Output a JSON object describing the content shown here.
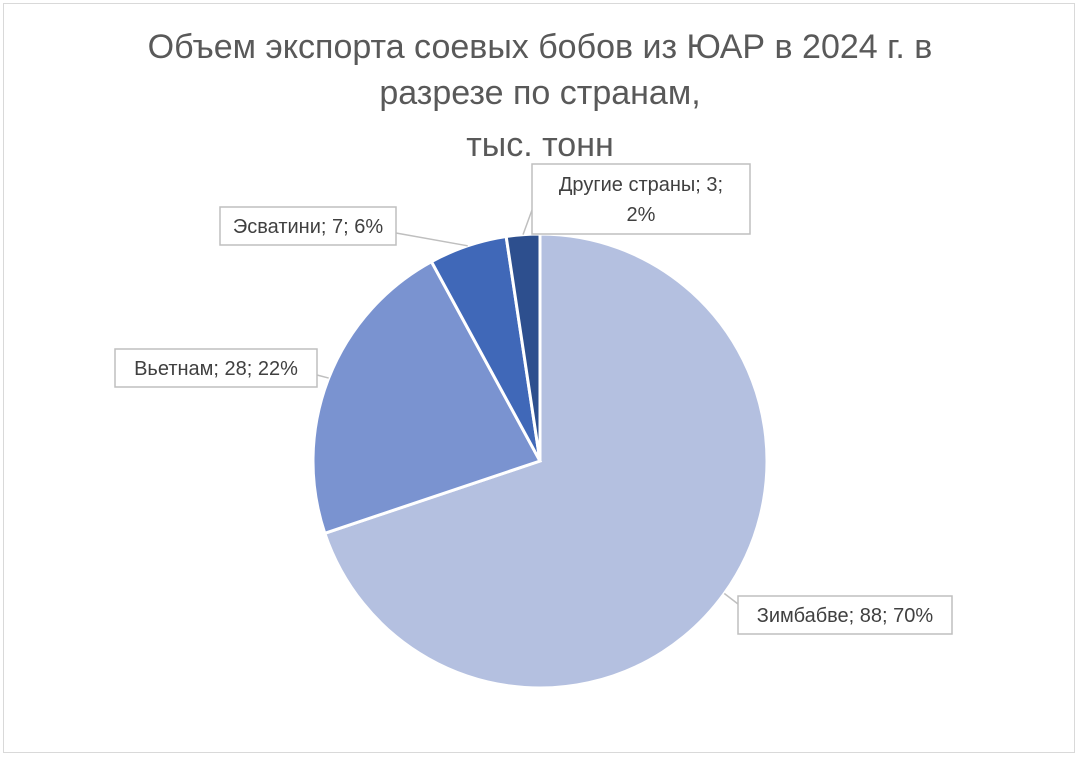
{
  "chart_data": {
    "type": "pie",
    "title_lines": [
      "Объем экспорта соевых бобов из ЮАР в 2024 г. в",
      "разрезе по странам,",
      "тыс. тонн"
    ],
    "slices": [
      {
        "category": "Зимбабве",
        "value": 88,
        "percent": "70%",
        "color": "#b4c0e0",
        "label_lines": [
          "Зимбабве; 88; 70%"
        ]
      },
      {
        "category": "Вьетнам",
        "value": 28,
        "percent": "22%",
        "color": "#7a93d0",
        "label_lines": [
          "Вьетнам; 28; 22%"
        ]
      },
      {
        "category": "Эсватини",
        "value": 7,
        "percent": "6%",
        "color": "#4068b8",
        "label_lines": [
          "Эсватини; 7; 6%"
        ]
      },
      {
        "category": "Другие страны",
        "value": 3,
        "percent": "2%",
        "color": "#2d4f8e",
        "label_lines": [
          "Другие страны; 3;",
          "2%"
        ]
      }
    ],
    "legend": "none",
    "data_labels": "outside with leader lines"
  }
}
